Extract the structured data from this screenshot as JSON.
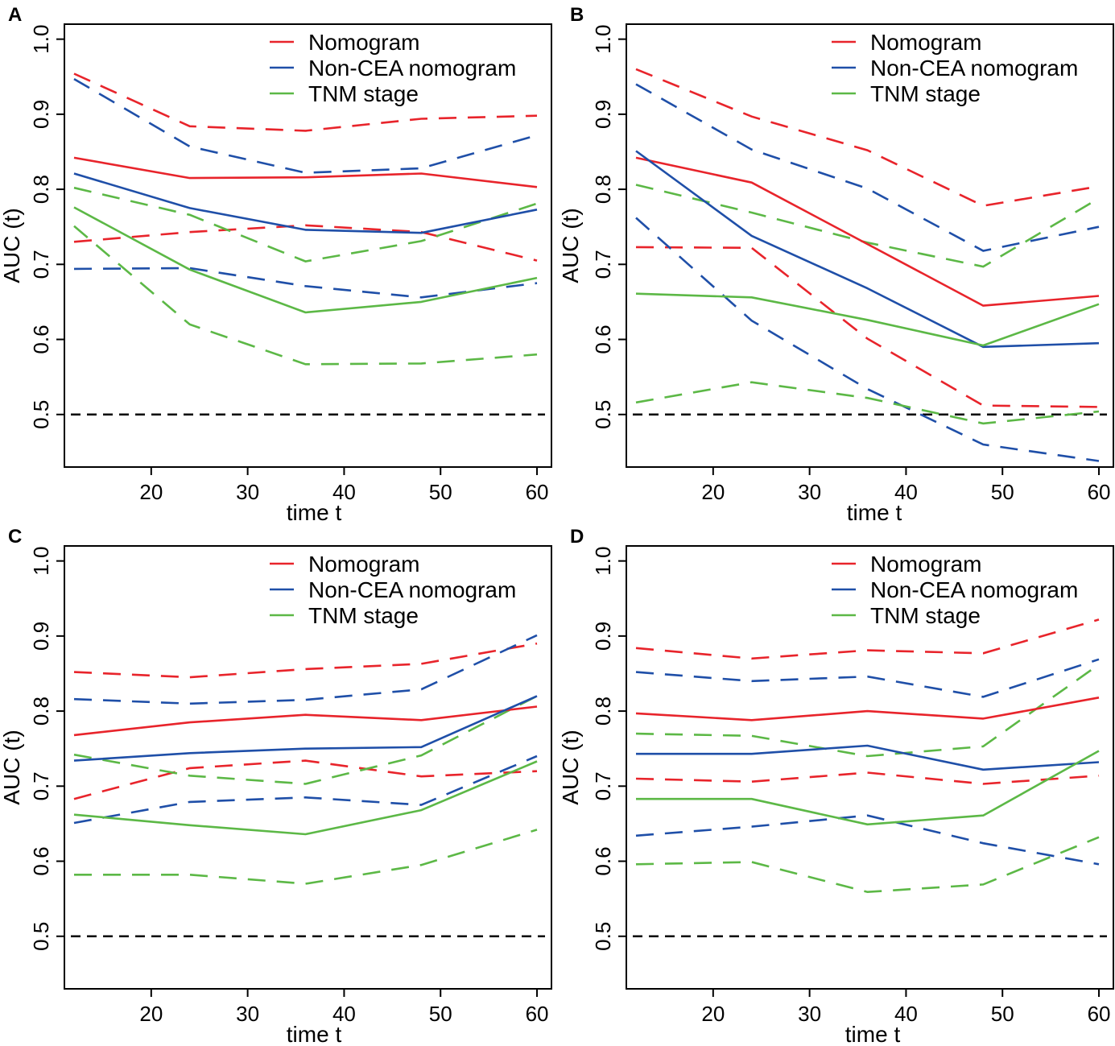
{
  "colors": {
    "nomogram": "#e8242b",
    "noncea": "#1f4fa8",
    "tnm": "#5cb846",
    "reference": "#000000"
  },
  "legend": [
    "Nomogram",
    "Non-CEA nomogram",
    "TNM stage"
  ],
  "chart_data": [
    {
      "panel": "A",
      "type": "line",
      "xlabel": "time t",
      "ylabel": "AUC (t)",
      "xlim": [
        11,
        61.5
      ],
      "ylim": [
        0.43,
        1.02
      ],
      "xticks": [
        20,
        30,
        40,
        50,
        60
      ],
      "yticks": [
        0.5,
        0.6,
        0.7,
        0.8,
        0.9,
        1.0
      ],
      "ytick_labels": [
        "0.5",
        "0.6",
        "0.7",
        "0.8",
        "0.9",
        "1.0"
      ],
      "reference": 0.5,
      "x": [
        12,
        24,
        36,
        48,
        60
      ],
      "series": [
        {
          "name": "Nomogram",
          "key": "nomogram",
          "values": [
            0.842,
            0.815,
            0.816,
            0.821,
            0.803
          ],
          "lower": [
            0.73,
            0.743,
            0.752,
            0.743,
            0.705
          ],
          "upper": [
            0.954,
            0.884,
            0.878,
            0.894,
            0.898
          ]
        },
        {
          "name": "Non-CEA nomogram",
          "key": "noncea",
          "values": [
            0.821,
            0.775,
            0.746,
            0.742,
            0.773
          ],
          "lower": [
            0.694,
            0.695,
            0.671,
            0.656,
            0.675
          ],
          "upper": [
            0.947,
            0.857,
            0.822,
            0.828,
            0.872
          ]
        },
        {
          "name": "TNM stage",
          "key": "tnm",
          "values": [
            0.776,
            0.693,
            0.636,
            0.65,
            0.682
          ],
          "lower": [
            0.751,
            0.62,
            0.567,
            0.568,
            0.58
          ],
          "upper": [
            0.802,
            0.766,
            0.704,
            0.731,
            0.781
          ]
        }
      ]
    },
    {
      "panel": "B",
      "type": "line",
      "xlabel": "time t",
      "ylabel": "AUC (t)",
      "xlim": [
        11,
        61.5
      ],
      "ylim": [
        0.43,
        1.02
      ],
      "xticks": [
        20,
        30,
        40,
        50,
        60
      ],
      "yticks": [
        0.5,
        0.6,
        0.7,
        0.8,
        0.9,
        1.0
      ],
      "ytick_labels": [
        "0.5",
        "0.6",
        "0.7",
        "0.8",
        "0.9",
        "1.0"
      ],
      "reference": 0.5,
      "x": [
        12,
        24,
        36,
        48,
        60
      ],
      "series": [
        {
          "name": "Nomogram",
          "key": "nomogram",
          "values": [
            0.842,
            0.809,
            0.727,
            0.645,
            0.658
          ],
          "lower": [
            0.723,
            0.722,
            0.601,
            0.512,
            0.51
          ],
          "upper": [
            0.96,
            0.897,
            0.852,
            0.778,
            0.804
          ]
        },
        {
          "name": "Non-CEA nomogram",
          "key": "noncea",
          "values": [
            0.851,
            0.738,
            0.668,
            0.59,
            0.595
          ],
          "lower": [
            0.762,
            0.625,
            0.534,
            0.46,
            0.438
          ],
          "upper": [
            0.94,
            0.853,
            0.801,
            0.718,
            0.75
          ]
        },
        {
          "name": "TNM stage",
          "key": "tnm",
          "values": [
            0.661,
            0.656,
            0.626,
            0.592,
            0.647
          ],
          "lower": [
            0.516,
            0.543,
            0.522,
            0.488,
            0.504
          ],
          "upper": [
            0.806,
            0.769,
            0.729,
            0.697,
            0.788
          ]
        }
      ]
    },
    {
      "panel": "C",
      "type": "line",
      "xlabel": "time t",
      "ylabel": "AUC (t)",
      "xlim": [
        11,
        61.5
      ],
      "ylim": [
        0.43,
        1.02
      ],
      "xticks": [
        20,
        30,
        40,
        50,
        60
      ],
      "yticks": [
        0.5,
        0.6,
        0.7,
        0.8,
        0.9,
        1.0
      ],
      "ytick_labels": [
        "0.5",
        "0.6",
        "0.7",
        "0.8",
        "0.9",
        "1.0"
      ],
      "reference": 0.5,
      "x": [
        12,
        24,
        36,
        48,
        60
      ],
      "series": [
        {
          "name": "Nomogram",
          "key": "nomogram",
          "values": [
            0.768,
            0.785,
            0.795,
            0.788,
            0.806
          ],
          "lower": [
            0.683,
            0.724,
            0.734,
            0.713,
            0.72
          ],
          "upper": [
            0.852,
            0.845,
            0.856,
            0.863,
            0.89
          ]
        },
        {
          "name": "Non-CEA nomogram",
          "key": "noncea",
          "values": [
            0.734,
            0.744,
            0.75,
            0.752,
            0.82
          ],
          "lower": [
            0.651,
            0.679,
            0.685,
            0.675,
            0.74
          ],
          "upper": [
            0.816,
            0.81,
            0.815,
            0.829,
            0.901
          ]
        },
        {
          "name": "TNM stage",
          "key": "tnm",
          "values": [
            0.662,
            0.648,
            0.636,
            0.668,
            0.733
          ],
          "lower": [
            0.582,
            0.582,
            0.57,
            0.595,
            0.642
          ],
          "upper": [
            0.742,
            0.714,
            0.703,
            0.741,
            0.82
          ]
        }
      ]
    },
    {
      "panel": "D",
      "type": "line",
      "xlabel": "time t",
      "ylabel": "AUC (t)",
      "xlim": [
        11,
        61.5
      ],
      "ylim": [
        0.43,
        1.02
      ],
      "xticks": [
        20,
        30,
        40,
        50,
        60
      ],
      "yticks": [
        0.5,
        0.6,
        0.7,
        0.8,
        0.9,
        1.0
      ],
      "ytick_labels": [
        "0.5",
        "0.6",
        "0.7",
        "0.8",
        "0.9",
        "1.0"
      ],
      "reference": 0.5,
      "x": [
        12,
        24,
        36,
        48,
        60
      ],
      "series": [
        {
          "name": "Nomogram",
          "key": "nomogram",
          "values": [
            0.797,
            0.788,
            0.8,
            0.79,
            0.818
          ],
          "lower": [
            0.71,
            0.706,
            0.718,
            0.703,
            0.714
          ],
          "upper": [
            0.884,
            0.87,
            0.881,
            0.877,
            0.922
          ]
        },
        {
          "name": "Non-CEA nomogram",
          "key": "noncea",
          "values": [
            0.743,
            0.743,
            0.754,
            0.722,
            0.732
          ],
          "lower": [
            0.634,
            0.646,
            0.661,
            0.624,
            0.596
          ],
          "upper": [
            0.852,
            0.84,
            0.846,
            0.819,
            0.869
          ]
        },
        {
          "name": "TNM stage",
          "key": "tnm",
          "values": [
            0.683,
            0.683,
            0.649,
            0.661,
            0.747
          ],
          "lower": [
            0.596,
            0.599,
            0.559,
            0.569,
            0.632
          ],
          "upper": [
            0.77,
            0.767,
            0.74,
            0.753,
            0.862
          ]
        }
      ]
    }
  ]
}
